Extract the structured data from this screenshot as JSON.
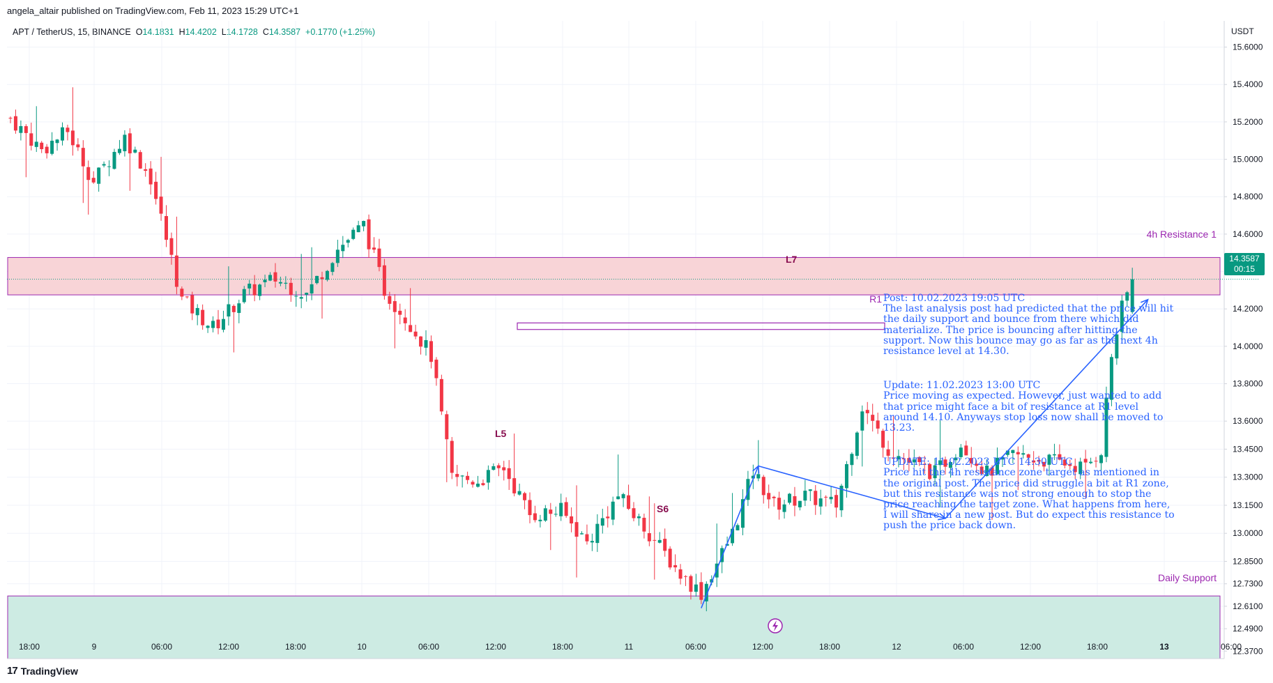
{
  "header": {
    "published_by": "angela_altair published on TradingView.com, Feb 11, 2023 15:29 UTC+1"
  },
  "symbol": {
    "name": "APT / TetherUS, 15, BINANCE",
    "open_label": "O",
    "open": "14.1831",
    "high_label": "H",
    "high": "14.4202",
    "low_label": "L",
    "low": "14.1728",
    "close_label": "C",
    "close": "14.3587",
    "change": "+0.1770 (+1.25%)"
  },
  "price_axis": {
    "currency": "USDT",
    "current_price": "14.3587",
    "countdown": "00:15",
    "ticks": [
      "15.6000",
      "15.4000",
      "15.2000",
      "15.0000",
      "14.8000",
      "14.6000",
      "14.4000",
      "14.2000",
      "14.0000",
      "13.8000",
      "13.6000",
      "13.4500",
      "13.3000",
      "13.1500",
      "13.0000",
      "12.8500",
      "12.7300",
      "12.6100",
      "12.4900",
      "12.3700"
    ]
  },
  "time_axis": {
    "ticks": [
      "18:00",
      "9",
      "06:00",
      "12:00",
      "18:00",
      "10",
      "06:00",
      "12:00",
      "18:00",
      "11",
      "06:00",
      "12:00",
      "18:00",
      "12",
      "06:00",
      "12:00",
      "18:00",
      "13",
      "06:00"
    ],
    "bold_ticks": [
      "13"
    ]
  },
  "zones": {
    "resistance_label": "4h Resistance 1",
    "support_label": "Daily Support",
    "r1_label": "R1"
  },
  "markers": {
    "l5": "L5",
    "s6": "S6",
    "l7": "L7"
  },
  "post": {
    "p1": "Post: 10.02.2023 19:05 UTC\nThe last analysis post had predicted that the price will hit the daily support and bounce from there which did materialize. The price is bouncing after hitting the support. Now this bounce may go as far as the next 4h resistance level at 14.30.",
    "p2": "Update: 11.02.2023 13:00 UTC\nPrice moving as expected. However, just wanted to add that price might face a bit of resistance at R1 level around 14.10. Anyways stop loss now shall be moved to 13.23.",
    "p3": "UPDATE: 11.02.2023 UTC 14:30 UTC\nPrice hit the 4h resistance zone target as mentioned in the original post. The price did struggle a bit at R1 zone, but this resistance was not strong enough to stop the price reaching the target zone. What happens from here, I will share in a new post. But do expect this resistance to push the price back down."
  },
  "footer": {
    "logo_text": "TradingView"
  },
  "colors": {
    "up": "#089981",
    "down": "#f23645",
    "resistance_fill": "#f8d4d7",
    "zone_border": "#9c27b0",
    "support_fill": "#cdebe3",
    "annotation": "#2962ff",
    "marker": "#880e4f"
  },
  "chart_data": {
    "type": "candlestick",
    "symbol": "APT / TetherUS",
    "interval": "15",
    "y_axis": {
      "currency": "USDT",
      "range": [
        12.33,
        15.74
      ]
    },
    "x_axis_labels": [
      "18:00",
      "9",
      "06:00",
      "12:00",
      "18:00",
      "10",
      "06:00",
      "12:00",
      "18:00",
      "11",
      "06:00",
      "12:00",
      "18:00",
      "12",
      "06:00",
      "12:00",
      "18:00",
      "13",
      "06:00"
    ],
    "close_path": [
      [
        0,
        15.22
      ],
      [
        6,
        15.05
      ],
      [
        11,
        15.15
      ],
      [
        16,
        14.88
      ],
      [
        22,
        15.12
      ],
      [
        27,
        14.9
      ],
      [
        33,
        14.25
      ],
      [
        39,
        14.1
      ],
      [
        45,
        14.28
      ],
      [
        51,
        14.36
      ],
      [
        57,
        14.28
      ],
      [
        63,
        14.52
      ],
      [
        68,
        14.65
      ],
      [
        72,
        14.3
      ],
      [
        77,
        14.12
      ],
      [
        81,
        13.95
      ],
      [
        85,
        13.3
      ],
      [
        90,
        13.28
      ],
      [
        95,
        13.35
      ],
      [
        100,
        13.1
      ],
      [
        106,
        13.12
      ],
      [
        111,
        12.95
      ],
      [
        117,
        13.2
      ],
      [
        123,
        13.0
      ],
      [
        129,
        12.78
      ],
      [
        133,
        12.68
      ],
      [
        139,
        13.0
      ],
      [
        143,
        13.33
      ],
      [
        147,
        13.15
      ],
      [
        153,
        13.2
      ],
      [
        159,
        13.15
      ],
      [
        164,
        13.68
      ],
      [
        169,
        13.45
      ],
      [
        173,
        13.38
      ],
      [
        178,
        13.32
      ],
      [
        183,
        13.48
      ],
      [
        188,
        13.32
      ],
      [
        193,
        13.42
      ],
      [
        197,
        13.4
      ],
      [
        202,
        13.38
      ],
      [
        207,
        13.35
      ],
      [
        210,
        13.45
      ],
      [
        212,
        13.95
      ],
      [
        214,
        14.2
      ],
      [
        216,
        14.36
      ]
    ],
    "total_bars": 216,
    "last": {
      "open": 14.1831,
      "high": 14.4202,
      "low": 14.1728,
      "close": 14.3587,
      "change": 0.177,
      "change_pct": 1.25
    },
    "zones": [
      {
        "name": "4h Resistance 1",
        "low": 14.275,
        "high": 14.475
      },
      {
        "name": "Daily Support",
        "low": 12.33,
        "high": 12.665
      },
      {
        "name": "R1",
        "low": 14.09,
        "high": 14.125
      }
    ],
    "annotations": [
      {
        "label": "L5",
        "from": [
          133,
          12.6
        ],
        "to": [
          144,
          13.36
        ]
      },
      {
        "label": "S6",
        "from": [
          144,
          13.36
        ],
        "to": [
          180,
          13.08
        ]
      },
      {
        "label": "L7",
        "from": [
          180,
          13.08
        ],
        "to": [
          219,
          14.25
        ]
      }
    ]
  }
}
